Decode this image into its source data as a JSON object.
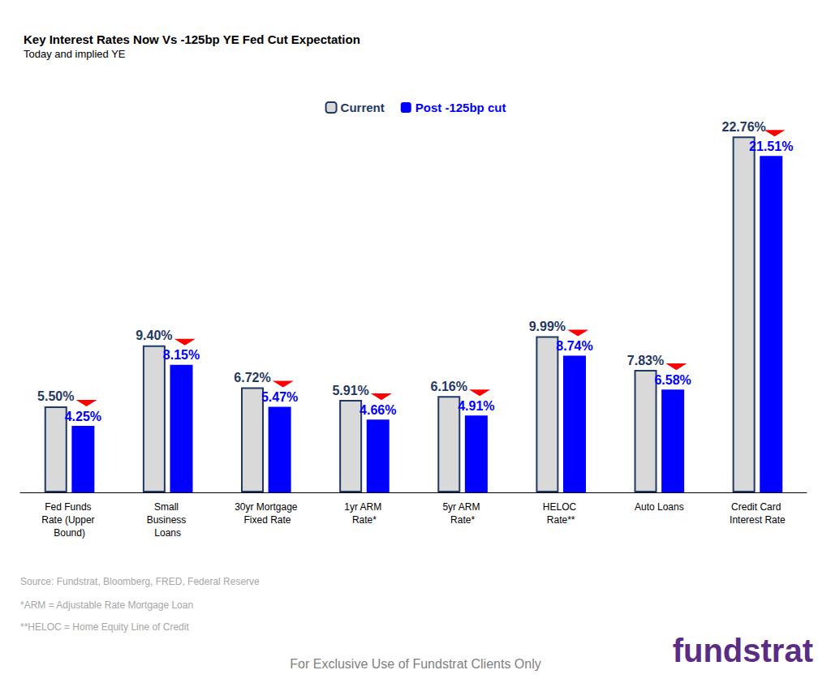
{
  "chart_data": {
    "type": "bar",
    "title": "Key Interest Rates Now Vs -125bp YE Fed Cut Expectation",
    "subtitle": "Today and implied YE",
    "categories": [
      "Fed Funds Rate (Upper Bound)",
      "Small Business Loans",
      "30yr Mortgage Fixed Rate",
      "1yr ARM Rate*",
      "5yr ARM Rate*",
      "HELOC Rate**",
      "Auto Loans",
      "Credit Card Interest Rate"
    ],
    "series": [
      {
        "name": "Current",
        "color": "#d9d9d9",
        "values": [
          5.5,
          9.4,
          6.72,
          5.91,
          6.16,
          9.99,
          7.83,
          22.76
        ],
        "value_labels": [
          "5.50%",
          "9.40%",
          "6.72%",
          "5.91%",
          "6.16%",
          "9.99%",
          "7.83%",
          "22.76%"
        ]
      },
      {
        "name": "Post -125bp cut",
        "color": "#0000ff",
        "values": [
          4.25,
          8.15,
          5.47,
          4.66,
          4.91,
          8.74,
          6.58,
          21.51
        ],
        "value_labels": [
          "4.25%",
          "8.15%",
          "5.47%",
          "4.66%",
          "4.91%",
          "8.74%",
          "6.58%",
          "21.51%"
        ]
      }
    ],
    "ylim": [
      0,
      25
    ],
    "yticks": [
      0,
      25
    ],
    "grid": false,
    "legend": "top",
    "data_labels": true,
    "tick_labels": "x",
    "source": "Source: Fundstrat, Bloomberg, FRED, Federal Reserve",
    "footnotes": [
      "*ARM = Adjustable Rate Mortgage Loan",
      "**HELOC = Home Equity Line of Credit"
    ],
    "disclaimer": "For Exclusive Use of Fundstrat Clients Only",
    "logo": "fundstrat"
  }
}
